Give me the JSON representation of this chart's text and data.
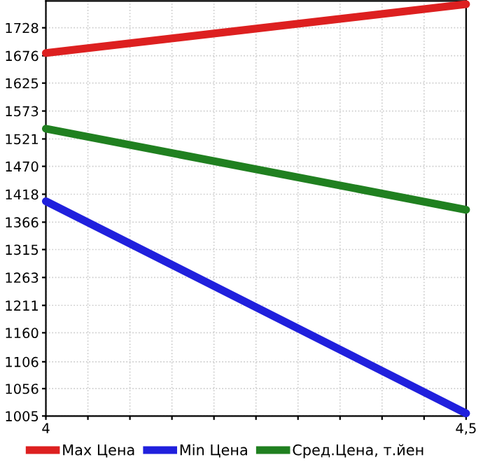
{
  "chart_data": {
    "type": "line",
    "x": [
      4,
      4.5
    ],
    "series": [
      {
        "name": "Max Цена",
        "color": "#dd2020",
        "values": [
          1681,
          1772
        ]
      },
      {
        "name": "Min Цена",
        "color": "#2020dd",
        "values": [
          1405,
          1010
        ]
      },
      {
        "name": "Сред.Цена, т.йен",
        "color": "#208020",
        "values": [
          1540,
          1389
        ]
      }
    ],
    "xlim": [
      4,
      4.5
    ],
    "xticks": [
      {
        "value": 4,
        "label": "4"
      },
      {
        "value": 4.05,
        "label": null
      },
      {
        "value": 4.1,
        "label": null
      },
      {
        "value": 4.15,
        "label": null
      },
      {
        "value": 4.2,
        "label": null
      },
      {
        "value": 4.25,
        "label": null
      },
      {
        "value": 4.3,
        "label": null
      },
      {
        "value": 4.35,
        "label": null
      },
      {
        "value": 4.4,
        "label": null
      },
      {
        "value": 4.45,
        "label": null
      },
      {
        "value": 4.5,
        "label": "4,5"
      }
    ],
    "ylim": [
      1005,
      1778
    ],
    "yticks": [
      1005,
      1056,
      1106,
      1160,
      1211,
      1263,
      1315,
      1366,
      1418,
      1470,
      1521,
      1573,
      1625,
      1676,
      1728
    ],
    "grid": true,
    "legend": "bottom",
    "marker": "none",
    "line_style": "solid"
  }
}
